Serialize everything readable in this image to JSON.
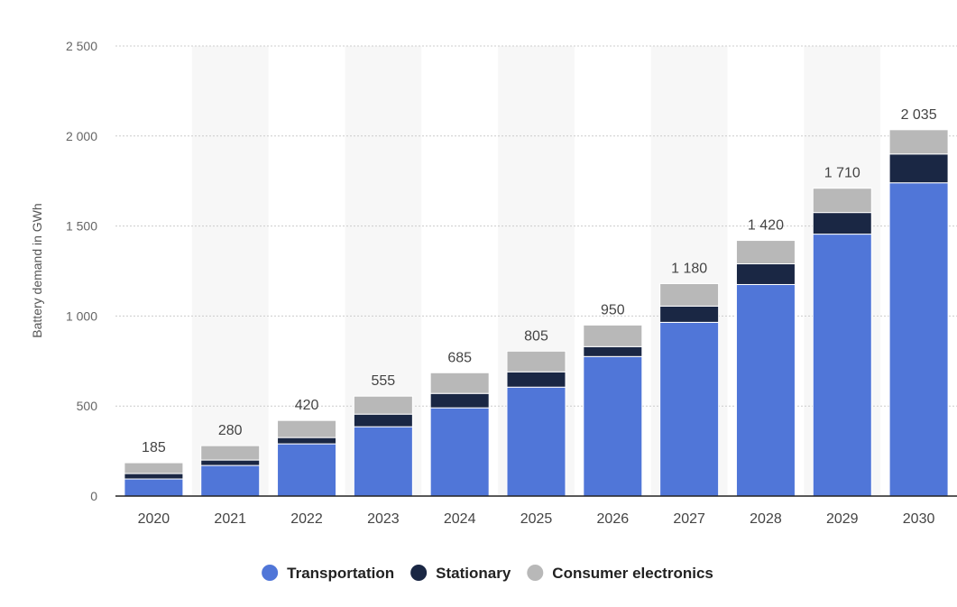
{
  "chart_data": {
    "type": "bar",
    "stacked": true,
    "title": "",
    "xlabel": "",
    "ylabel": "Battery demand in GWh",
    "ylim": [
      0,
      2500
    ],
    "yticks": [
      0,
      500,
      1000,
      1500,
      2000,
      2500
    ],
    "ytick_labels": [
      "0",
      "500",
      "1 000",
      "1 500",
      "2 000",
      "2 500"
    ],
    "grid": true,
    "legend_position": "bottom-center",
    "categories": [
      "2020",
      "2021",
      "2022",
      "2023",
      "2024",
      "2025",
      "2026",
      "2027",
      "2028",
      "2029",
      "2030"
    ],
    "series": [
      {
        "name": "Transportation",
        "color": "#5076d8",
        "values": [
          95,
          170,
          290,
          385,
          490,
          605,
          775,
          965,
          1175,
          1455,
          1740
        ]
      },
      {
        "name": "Stationary",
        "color": "#1a2744",
        "values": [
          30,
          30,
          35,
          70,
          80,
          85,
          55,
          90,
          115,
          120,
          160
        ]
      },
      {
        "name": "Consumer electronics",
        "color": "#b8b8b8",
        "values": [
          60,
          80,
          95,
          100,
          115,
          115,
          120,
          125,
          130,
          135,
          135
        ]
      }
    ],
    "totals": [
      185,
      280,
      420,
      555,
      685,
      805,
      950,
      1180,
      1420,
      1710,
      2035
    ],
    "total_labels": [
      "185",
      "280",
      "420",
      "555",
      "685",
      "805",
      "950",
      "1 180",
      "1 420",
      "1 710",
      "2 035"
    ]
  }
}
